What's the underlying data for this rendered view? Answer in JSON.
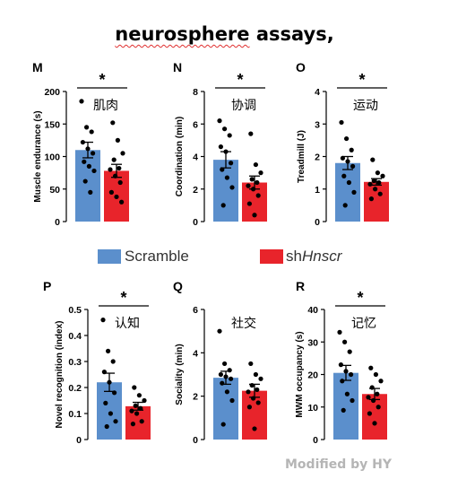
{
  "title": {
    "misspelled_word": "neurosphere",
    "rest": " assays,"
  },
  "colors": {
    "scramble": "#5b8fcc",
    "sh": "#e8242b",
    "axis": "#000000",
    "credit": "#b5b5b5"
  },
  "legend": {
    "scramble_label": "Scramble",
    "sh_prefix": "sh",
    "sh_italic": "Hnscr"
  },
  "credit": "Modified by HY",
  "chart_data": [
    {
      "panel": "M",
      "type": "bar",
      "annotation": "肌肉",
      "ylabel": "Muscle endurance (s)",
      "ylim": [
        0,
        200
      ],
      "yticks": [
        0,
        50,
        100,
        150,
        200
      ],
      "significant": true,
      "sig_label": "*",
      "series": [
        {
          "name": "Scramble",
          "mean": 110,
          "sem": 12,
          "points": [
            185,
            145,
            138,
            122,
            112,
            105,
            92,
            85,
            78,
            62,
            45
          ]
        },
        {
          "name": "shHnscr",
          "mean": 78,
          "sem": 10,
          "points": [
            152,
            125,
            105,
            95,
            82,
            80,
            70,
            60,
            45,
            38,
            30
          ]
        }
      ]
    },
    {
      "panel": "N",
      "type": "bar",
      "annotation": "协调",
      "ylabel": "Coordination (min)",
      "ylim": [
        0,
        8
      ],
      "yticks": [
        0,
        2,
        4,
        6,
        8
      ],
      "significant": true,
      "sig_label": "*",
      "series": [
        {
          "name": "Scramble",
          "mean": 3.8,
          "sem": 0.5,
          "points": [
            6.2,
            5.7,
            5.3,
            4.6,
            4.3,
            3.6,
            3.2,
            2.7,
            2.1,
            1.0
          ]
        },
        {
          "name": "shHnscr",
          "mean": 2.4,
          "sem": 0.4,
          "points": [
            5.4,
            3.5,
            3.0,
            2.6,
            2.4,
            2.2,
            2.0,
            1.6,
            1.1,
            0.4
          ]
        }
      ]
    },
    {
      "panel": "O",
      "type": "bar",
      "annotation": "运动",
      "ylabel": "Treadmill (J)",
      "ylim": [
        0,
        4
      ],
      "yticks": [
        0,
        1,
        2,
        3,
        4
      ],
      "significant": true,
      "sig_label": "*",
      "series": [
        {
          "name": "Scramble",
          "mean": 1.8,
          "sem": 0.2,
          "points": [
            3.05,
            2.55,
            2.2,
            1.95,
            1.85,
            1.7,
            1.4,
            1.2,
            0.9,
            0.5
          ]
        },
        {
          "name": "shHnscr",
          "mean": 1.22,
          "sem": 0.1,
          "points": [
            1.9,
            1.5,
            1.4,
            1.25,
            1.2,
            1.15,
            1.0,
            0.85,
            0.7
          ]
        }
      ]
    },
    {
      "panel": "P",
      "type": "bar",
      "annotation": "认知",
      "ylabel": "Novel recognition (index)",
      "ylim": [
        0,
        0.5
      ],
      "yticks": [
        0,
        0.1,
        0.2,
        0.3,
        0.4,
        0.5
      ],
      "significant": true,
      "sig_label": "*",
      "series": [
        {
          "name": "Scramble",
          "mean": 0.22,
          "sem": 0.035,
          "points": [
            0.46,
            0.34,
            0.3,
            0.26,
            0.22,
            0.18,
            0.14,
            0.1,
            0.07,
            0.05
          ]
        },
        {
          "name": "shHnscr",
          "mean": 0.128,
          "sem": 0.015,
          "points": [
            0.2,
            0.17,
            0.15,
            0.13,
            0.12,
            0.11,
            0.1,
            0.07,
            0.06
          ]
        }
      ]
    },
    {
      "panel": "Q",
      "type": "bar",
      "annotation": "社交",
      "ylabel": "Sociality (min)",
      "ylim": [
        0,
        6
      ],
      "yticks": [
        0,
        2,
        4,
        6
      ],
      "significant": false,
      "sig_label": "",
      "series": [
        {
          "name": "Scramble",
          "mean": 2.85,
          "sem": 0.3,
          "points": [
            5.0,
            3.5,
            3.2,
            3.0,
            2.9,
            2.8,
            2.6,
            2.2,
            1.8,
            0.7
          ]
        },
        {
          "name": "shHnscr",
          "mean": 2.25,
          "sem": 0.3,
          "points": [
            3.5,
            3.0,
            2.8,
            2.5,
            2.3,
            2.2,
            1.9,
            1.7,
            1.5,
            0.5
          ]
        }
      ]
    },
    {
      "panel": "R",
      "type": "bar",
      "annotation": "记忆",
      "ylabel": "MWM occupancy (s)",
      "ylim": [
        0,
        40
      ],
      "yticks": [
        0,
        10,
        20,
        30,
        40
      ],
      "significant": true,
      "sig_label": "*",
      "series": [
        {
          "name": "Scramble",
          "mean": 20.5,
          "sem": 2.3,
          "points": [
            33,
            30,
            27,
            23,
            21,
            20,
            18,
            14,
            12,
            9
          ]
        },
        {
          "name": "shHnscr",
          "mean": 14,
          "sem": 1.7,
          "points": [
            22,
            20,
            18,
            16,
            14,
            13,
            12,
            10,
            8,
            5
          ]
        }
      ]
    }
  ]
}
